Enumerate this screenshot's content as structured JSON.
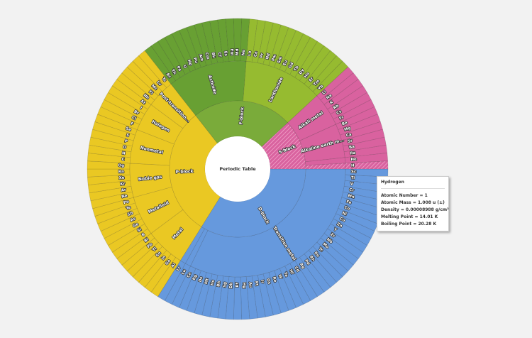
{
  "chart_data": {
    "type": "sunburst",
    "title": "Periodic Table",
    "hovered_element": "H",
    "blocks": [
      {
        "name": "D-block",
        "color": "#6699dd",
        "categories": [
          {
            "name": "Transition metal",
            "color": "#6699dd",
            "elements": [
              "Sc",
              "Ti",
              "V",
              "Cr",
              "Mn",
              "Fe",
              "Co",
              "Ni",
              "Cu",
              "Zn",
              "Y",
              "Zr",
              "Nb",
              "Mo",
              "Tc",
              "Ru",
              "Rh",
              "Pd",
              "Ag",
              "Cd",
              "Hf",
              "Ta",
              "W",
              "Re",
              "Os",
              "Ir",
              "Pt",
              "Au",
              "Hg",
              "Rf",
              "Db",
              "Sg",
              "Bh",
              "Hs",
              "Mt",
              "Ds",
              "Rg",
              "Cn"
            ]
          },
          {
            "name": "",
            "color": "#6699dd",
            "elements": [
              "Lu"
            ]
          },
          {
            "name": "",
            "color": "#6699dd",
            "elements": [
              "Lr"
            ]
          }
        ]
      },
      {
        "name": "P-block",
        "color": "#eac823",
        "categories": [
          {
            "name": "Metal",
            "color": "#eac823",
            "elements": [
              "Al",
              "Ga",
              "In",
              "Sn",
              "Tl",
              "Pb",
              "Bi"
            ]
          },
          {
            "name": "Metalloid",
            "color": "#eac823",
            "elements": [
              "B",
              "Si",
              "Ge",
              "As",
              "Sb",
              "Te",
              "Po"
            ]
          },
          {
            "name": "Noble gas",
            "color": "#eac823",
            "elements": [
              "Ne",
              "Ar",
              "Kr",
              "Xe",
              "Rn",
              "Og"
            ]
          },
          {
            "name": "Nonmetal",
            "color": "#eac823",
            "elements": [
              "C",
              "N",
              "O",
              "P",
              "S",
              "Se"
            ]
          },
          {
            "name": "Halogen",
            "color": "#eac823",
            "elements": [
              "F",
              "Cl",
              "Br",
              "I",
              "At"
            ]
          },
          {
            "name": "Post-transition...",
            "color": "#eac823",
            "elements": [
              "Nh",
              "Fl",
              "Mc",
              "Lv",
              "Ts"
            ]
          }
        ]
      },
      {
        "name": "F-block",
        "color": "#7aab3a",
        "categories": [
          {
            "name": "Actinide",
            "color": "#68a033",
            "elements": [
              "Ac",
              "Th",
              "Pa",
              "U",
              "Np",
              "Pu",
              "Am",
              "Cm",
              "Bk",
              "Cf",
              "Es",
              "Fm",
              "Md",
              "No"
            ]
          },
          {
            "name": "Lanthanide",
            "color": "#96bb30",
            "elements": [
              "La",
              "Ce",
              "Pr",
              "Nd",
              "Pm",
              "Sm",
              "Eu",
              "Gd",
              "Tb",
              "Dy",
              "Ho",
              "Er",
              "Tm",
              "Yb"
            ]
          }
        ]
      },
      {
        "name": "S-block",
        "color": "#d9629f",
        "categories": [
          {
            "name": "Alkali metal",
            "color": "#d9629f",
            "elements": [
              "Li",
              "Na",
              "K",
              "Rb",
              "Cs",
              "Fr"
            ]
          },
          {
            "name": "Alkaline earth m...",
            "color": "#d9629f",
            "elements": [
              "Be",
              "Mg",
              "Ca",
              "Sr",
              "Ba",
              "Ra"
            ]
          },
          {
            "name": "",
            "color": "#d9629f",
            "elements": [
              "He"
            ]
          },
          {
            "name": "",
            "color": "#d9629f",
            "elements": [
              "H"
            ]
          }
        ]
      }
    ]
  },
  "tooltip": {
    "title": "Hydrogen",
    "rows": [
      "Atomic Number = 1",
      "Atomic Mass = 1.008 u (±)",
      "Density = 0.00008988 g/cm³",
      "Melting Point = 14.01 K",
      "Boiling Point = 20.28 K"
    ]
  }
}
